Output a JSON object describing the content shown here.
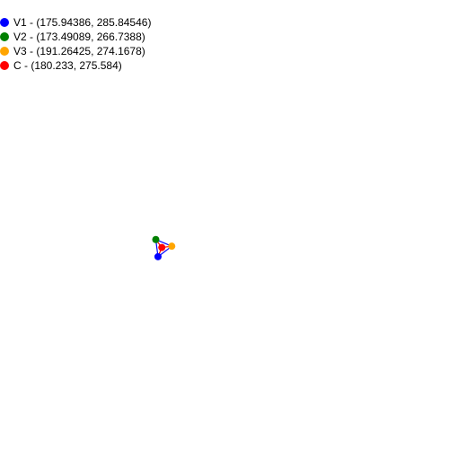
{
  "legend": [
    {
      "id": "v1",
      "label": "V1 - (175.94386, 285.84546)",
      "color": "#0000ff"
    },
    {
      "id": "v2",
      "label": "V2 - (173.49089, 266.7388)",
      "color": "#008000"
    },
    {
      "id": "v3",
      "label": "V3 - (191.26425, 274.1678)",
      "color": "#ffa500"
    },
    {
      "id": "c",
      "label": "C - (180.233, 275.584)",
      "color": "#ff0000"
    }
  ],
  "points": {
    "v1": {
      "x": 175.94386,
      "y": 285.84546,
      "color": "#0000ff"
    },
    "v2": {
      "x": 173.49089,
      "y": 266.7388,
      "color": "#008000"
    },
    "v3": {
      "x": 191.26425,
      "y": 274.1678,
      "color": "#ffa500"
    },
    "c": {
      "x": 180.233,
      "y": 275.584,
      "color": "#ff0000"
    }
  },
  "edge_color": "#0000ff",
  "spoke_color": "#ff0000"
}
